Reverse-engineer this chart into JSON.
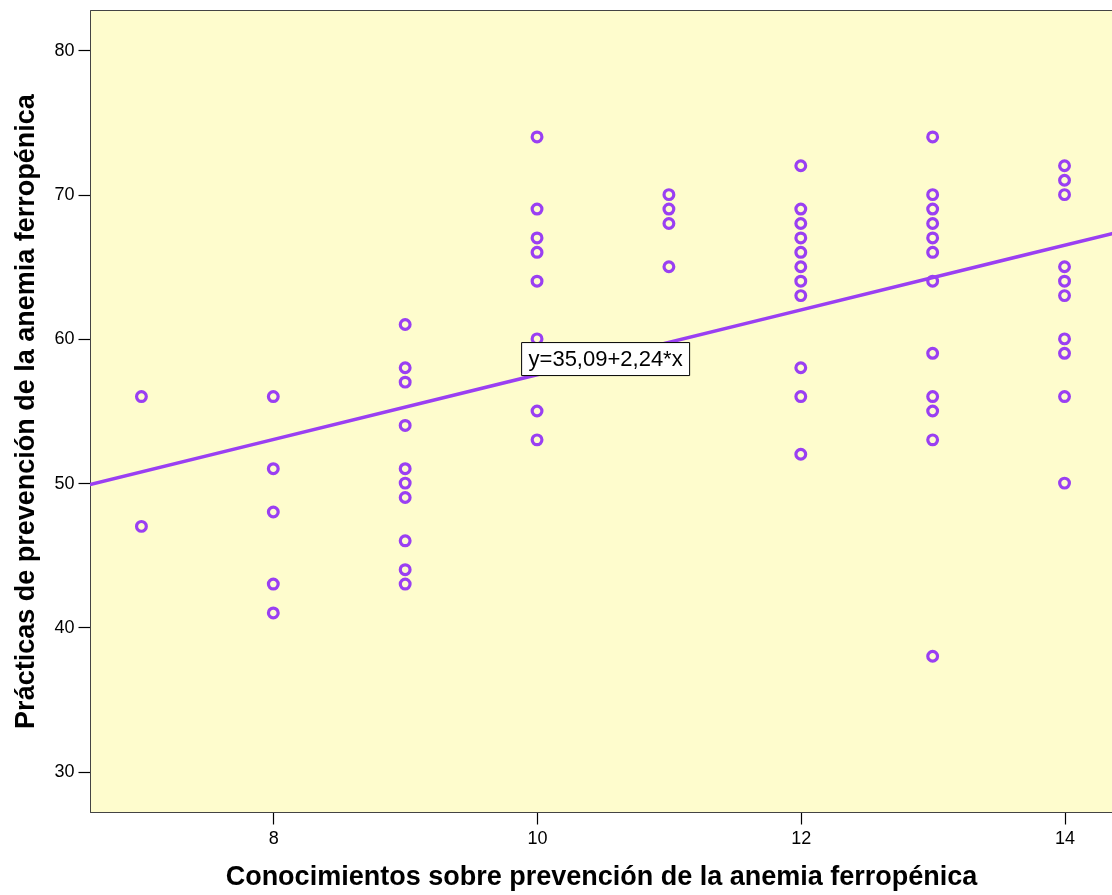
{
  "chart_data": {
    "type": "scatter",
    "xlabel": "Conocimientos sobre prevención de la anemia ferropénica",
    "ylabel": "Prácticas de prevención de la anemia ferropénica",
    "xlim": [
      6.61,
      14.36
    ],
    "ylim": [
      27.2,
      82.8
    ],
    "xticks": [
      8,
      10,
      12,
      14
    ],
    "yticks": [
      30,
      40,
      50,
      60,
      70,
      80
    ],
    "series": [
      {
        "color": "#9a3ff2",
        "marker": "circle",
        "x": [
          7,
          7,
          8,
          8,
          8,
          8,
          8,
          9,
          9,
          9,
          9,
          9,
          9,
          9,
          9,
          9,
          9,
          10,
          10,
          10,
          10,
          10,
          10,
          10,
          10,
          11,
          11,
          11,
          11,
          12,
          12,
          12,
          12,
          12,
          12,
          12,
          12,
          12,
          12,
          12,
          13,
          13,
          13,
          13,
          13,
          13,
          13,
          13,
          13,
          13,
          13,
          13,
          14,
          14,
          14,
          14,
          14,
          14,
          14,
          14,
          14,
          14
        ],
        "values": [
          56,
          47,
          56,
          51,
          48,
          43,
          41,
          61,
          58,
          57,
          54,
          51,
          50,
          49,
          46,
          44,
          43,
          74,
          69,
          67,
          66,
          64,
          60,
          55,
          53,
          70,
          69,
          68,
          65,
          72,
          69,
          68,
          67,
          66,
          65,
          64,
          63,
          58,
          56,
          52,
          74,
          70,
          69,
          68,
          67,
          66,
          64,
          59,
          56,
          55,
          53,
          38,
          72,
          71,
          70,
          65,
          64,
          63,
          60,
          59,
          56,
          50
        ]
      },
      {
        "type": "line",
        "color": "#9a3ff2",
        "x": [
          6.61,
          14.36
        ],
        "values": [
          49.9,
          67.3
        ]
      }
    ],
    "annotations": [
      {
        "text": "y=35,09+2,24*x",
        "x": 10.52,
        "y": 58.6
      }
    ]
  }
}
